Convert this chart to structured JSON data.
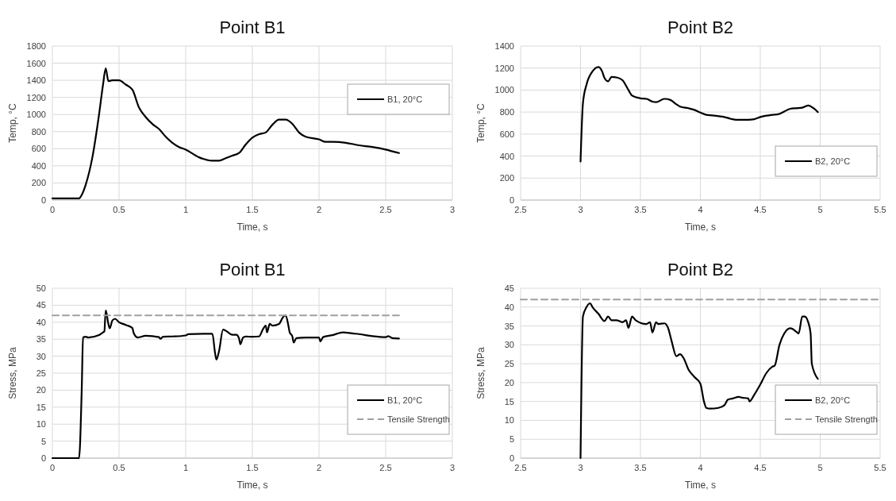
{
  "chart_data": [
    {
      "type": "line",
      "title": "Point B1",
      "xlabel": "Time, s",
      "ylabel": "Temp, °C",
      "xlim": [
        0,
        3
      ],
      "xticks": [
        0,
        0.5,
        1,
        1.5,
        2,
        2.5,
        3
      ],
      "ylim": [
        0,
        1800
      ],
      "yticks": [
        0,
        200,
        400,
        600,
        800,
        1000,
        1200,
        1400,
        1600,
        1800
      ],
      "grid": true,
      "legend": "right",
      "line_style": "solid",
      "series": [
        {
          "name": "B1, 20°C",
          "color": "#000000",
          "x": [
            0,
            0.2,
            0.22,
            0.25,
            0.3,
            0.35,
            0.38,
            0.4,
            0.42,
            0.45,
            0.5,
            0.55,
            0.6,
            0.65,
            0.7,
            0.75,
            0.8,
            0.85,
            0.9,
            0.95,
            1.0,
            1.1,
            1.2,
            1.25,
            1.3,
            1.35,
            1.4,
            1.45,
            1.5,
            1.55,
            1.6,
            1.65,
            1.7,
            1.75,
            1.8,
            1.85,
            1.9,
            2.0,
            2.05,
            2.1,
            2.2,
            2.3,
            2.4,
            2.5,
            2.55,
            2.6
          ],
          "values": [
            20,
            20,
            60,
            180,
            500,
            1000,
            1350,
            1540,
            1390,
            1400,
            1400,
            1350,
            1290,
            1080,
            970,
            890,
            830,
            740,
            670,
            620,
            590,
            500,
            460,
            460,
            490,
            520,
            550,
            650,
            730,
            770,
            790,
            880,
            940,
            940,
            890,
            790,
            740,
            710,
            680,
            680,
            670,
            640,
            620,
            590,
            570,
            550
          ]
        }
      ]
    },
    {
      "type": "line",
      "title": "Point B2",
      "xlabel": "Time, s",
      "ylabel": "Temp, °C",
      "xlim": [
        2.5,
        5.5
      ],
      "xticks": [
        2.5,
        3,
        3.5,
        4,
        4.5,
        5,
        5.5
      ],
      "ylim": [
        0,
        1400
      ],
      "yticks": [
        0,
        200,
        400,
        600,
        800,
        1000,
        1200,
        1400
      ],
      "grid": true,
      "legend": "bottom right",
      "line_style": "solid",
      "series": [
        {
          "name": "B2, 20°C",
          "color": "#000000",
          "x": [
            3.0,
            3.02,
            3.05,
            3.1,
            3.15,
            3.18,
            3.2,
            3.23,
            3.26,
            3.3,
            3.35,
            3.4,
            3.43,
            3.5,
            3.55,
            3.6,
            3.63,
            3.7,
            3.75,
            3.8,
            3.83,
            3.9,
            3.95,
            4.0,
            4.05,
            4.1,
            4.2,
            4.25,
            4.3,
            4.4,
            4.45,
            4.5,
            4.6,
            4.65,
            4.7,
            4.75,
            4.8,
            4.85,
            4.9,
            4.95,
            4.98
          ],
          "values": [
            350,
            880,
            1050,
            1170,
            1210,
            1170,
            1110,
            1080,
            1120,
            1115,
            1090,
            1000,
            950,
            925,
            920,
            895,
            890,
            920,
            910,
            870,
            850,
            835,
            820,
            795,
            775,
            770,
            755,
            740,
            730,
            730,
            735,
            755,
            775,
            780,
            805,
            830,
            835,
            840,
            860,
            830,
            800
          ]
        }
      ]
    },
    {
      "type": "line",
      "title": "Point B1",
      "xlabel": "Time, s",
      "ylabel": "Stress, MPa",
      "xlim": [
        0,
        3
      ],
      "xticks": [
        0,
        0.5,
        1,
        1.5,
        2,
        2.5,
        3
      ],
      "ylim": [
        0,
        50
      ],
      "yticks": [
        0,
        5,
        10,
        15,
        20,
        25,
        30,
        35,
        40,
        45,
        50
      ],
      "grid": true,
      "legend": "bottom right",
      "line_style": "solid",
      "series": [
        {
          "name": "B1, 20°C",
          "color": "#000000",
          "x": [
            0,
            0.2,
            0.22,
            0.23,
            0.25,
            0.27,
            0.35,
            0.38,
            0.39,
            0.4,
            0.42,
            0.43,
            0.45,
            0.47,
            0.5,
            0.55,
            0.6,
            0.61,
            0.64,
            0.7,
            0.8,
            0.81,
            0.83,
            0.9,
            1.0,
            1.02,
            1.2,
            1.22,
            1.23,
            1.25,
            1.28,
            1.3,
            1.35,
            1.38,
            1.4,
            1.41,
            1.43,
            1.45,
            1.5,
            1.55,
            1.58,
            1.6,
            1.61,
            1.63,
            1.65,
            1.7,
            1.73,
            1.75,
            1.77,
            1.78,
            1.8,
            1.81,
            1.83,
            1.9,
            2.0,
            2.01,
            2.03,
            2.1,
            2.18,
            2.25,
            2.3,
            2.4,
            2.5,
            2.52,
            2.55,
            2.6
          ],
          "values": [
            0,
            0,
            20,
            35.5,
            35.7,
            35.5,
            36.2,
            37,
            37.3,
            43.5,
            39.5,
            38.2,
            40.5,
            41,
            40,
            39.2,
            38.3,
            36.8,
            35.5,
            36,
            35.6,
            35.1,
            35.7,
            35.8,
            36.1,
            36.5,
            36.6,
            31,
            29,
            31.5,
            37.8,
            37.5,
            36.3,
            36.3,
            35.2,
            33.5,
            35.5,
            35.8,
            35.7,
            35.8,
            38,
            39,
            37,
            39.5,
            39,
            39.5,
            41.5,
            42,
            39,
            37,
            35.8,
            34,
            35.3,
            35.5,
            35.5,
            34.3,
            35.6,
            36.2,
            37,
            36.7,
            36.5,
            35.9,
            35.6,
            35.9,
            35.3,
            35.2
          ]
        },
        {
          "name": "Tensile Strength",
          "color": "#a0a0a0",
          "line_style": "dashed",
          "x": [
            0,
            2.6
          ],
          "values": [
            42,
            42
          ]
        }
      ]
    },
    {
      "type": "line",
      "title": "Point B2",
      "xlabel": "Time, s",
      "ylabel": "Stress, MPa",
      "xlim": [
        2.5,
        5.5
      ],
      "xticks": [
        2.5,
        3,
        3.5,
        4,
        4.5,
        5,
        5.5
      ],
      "ylim": [
        0,
        45
      ],
      "yticks": [
        0,
        5,
        10,
        15,
        20,
        25,
        30,
        35,
        40,
        45
      ],
      "grid": true,
      "legend": "bottom right",
      "line_style": "solid",
      "series": [
        {
          "name": "B2, 20°C",
          "color": "#000000",
          "x": [
            3.0,
            3.02,
            3.05,
            3.08,
            3.1,
            3.15,
            3.2,
            3.23,
            3.26,
            3.3,
            3.35,
            3.38,
            3.4,
            3.43,
            3.46,
            3.55,
            3.58,
            3.6,
            3.63,
            3.65,
            3.7,
            3.73,
            3.76,
            3.8,
            3.83,
            3.86,
            3.9,
            3.95,
            4.0,
            4.03,
            4.05,
            4.08,
            4.15,
            4.2,
            4.23,
            4.27,
            4.32,
            4.35,
            4.4,
            4.41,
            4.45,
            4.5,
            4.55,
            4.6,
            4.62,
            4.66,
            4.7,
            4.75,
            4.8,
            4.82,
            4.85,
            4.87,
            4.9,
            4.92,
            4.93,
            4.98
          ],
          "values": [
            0,
            37.5,
            40,
            41,
            40,
            38.2,
            36.3,
            37.5,
            36.5,
            36.5,
            36,
            36.5,
            34.5,
            37.5,
            36.5,
            35.5,
            36,
            33.3,
            36,
            35.5,
            35.7,
            34.5,
            31,
            27,
            27.5,
            26.5,
            23.5,
            21.5,
            19.7,
            15,
            13.3,
            13.1,
            13.3,
            14,
            15.5,
            15.8,
            16.2,
            16,
            15.8,
            15,
            16.8,
            19.5,
            22.5,
            24.2,
            24.5,
            30,
            33,
            34.4,
            33.5,
            33,
            37.5,
            37.5,
            36,
            33,
            25,
            21
          ]
        },
        {
          "name": "Tensile Strength",
          "color": "#a0a0a0",
          "line_style": "dashed",
          "x": [
            2.5,
            5.5
          ],
          "values": [
            42,
            42
          ]
        }
      ]
    }
  ]
}
